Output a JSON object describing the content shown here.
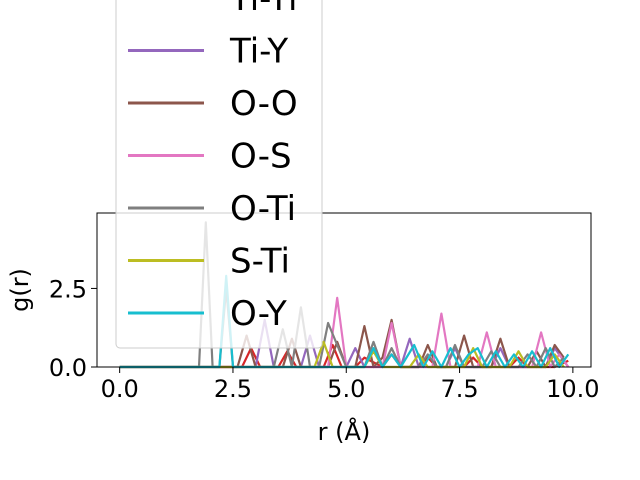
{
  "chart_data": {
    "type": "line",
    "xlabel": "r (Å)",
    "ylabel": "g(r)",
    "xlim": [
      -0.5,
      10.4
    ],
    "ylim": [
      0,
      4.9
    ],
    "xticks": [
      {
        "value": 0.0,
        "label": "0.0"
      },
      {
        "value": 2.5,
        "label": "2.5"
      },
      {
        "value": 5.0,
        "label": "5.0"
      },
      {
        "value": 7.5,
        "label": "7.5"
      },
      {
        "value": 10.0,
        "label": "10.0"
      }
    ],
    "yticks": [
      {
        "value": 0.0,
        "label": "0.0"
      },
      {
        "value": 2.5,
        "label": "2.5"
      }
    ],
    "grid": false,
    "legend_position": "upper-left",
    "series": [
      {
        "name": "Ti-Ti",
        "color": "#d62728",
        "legend": true,
        "x": [
          0.0,
          2.7,
          2.9,
          3.1,
          3.3,
          3.5,
          3.7,
          3.9,
          4.1,
          4.5,
          4.7,
          4.9,
          5.2,
          5.4,
          5.8,
          6.0,
          6.2,
          6.6,
          6.8,
          7.0,
          7.6,
          7.8,
          8.0,
          8.6,
          8.8,
          9.0,
          9.6,
          9.9
        ],
        "y": [
          0.0,
          0.0,
          0.6,
          0.0,
          0.0,
          0.0,
          0.5,
          0.0,
          0.0,
          0.0,
          0.7,
          0.0,
          0.0,
          0.3,
          0.0,
          0.4,
          0.0,
          0.0,
          0.3,
          0.0,
          0.0,
          0.3,
          0.0,
          0.0,
          0.3,
          0.0,
          0.0,
          0.2
        ]
      },
      {
        "name": "Ti-Y",
        "color": "#9467bd",
        "legend": true,
        "x": [
          0.0,
          3.0,
          3.2,
          3.4,
          4.0,
          4.2,
          4.4,
          5.0,
          5.2,
          5.4,
          6.2,
          6.4,
          6.6,
          7.2,
          7.4,
          7.6,
          8.2,
          8.4,
          8.6,
          9.4,
          9.6,
          9.9
        ],
        "y": [
          0.0,
          0.0,
          1.5,
          0.0,
          0.0,
          1.0,
          0.0,
          0.0,
          0.6,
          0.0,
          0.0,
          0.9,
          0.0,
          0.0,
          0.6,
          0.0,
          0.0,
          0.6,
          0.0,
          0.0,
          0.6,
          0.0
        ]
      },
      {
        "name": "O-O",
        "color": "#8c564b",
        "legend": true,
        "x": [
          0.0,
          2.6,
          2.8,
          3.0,
          3.6,
          3.8,
          4.0,
          4.6,
          4.8,
          5.0,
          5.2,
          5.4,
          5.6,
          5.8,
          6.0,
          6.2,
          6.6,
          6.8,
          7.0,
          7.4,
          7.6,
          7.8,
          8.2,
          8.4,
          8.6,
          9.0,
          9.2,
          9.4,
          9.6,
          9.8
        ],
        "y": [
          0.0,
          0.0,
          1.0,
          0.0,
          0.0,
          0.9,
          0.0,
          0.0,
          0.8,
          0.0,
          0.0,
          1.3,
          0.0,
          0.3,
          1.5,
          0.0,
          0.0,
          0.7,
          0.0,
          0.0,
          1.0,
          0.0,
          0.0,
          0.9,
          0.0,
          0.0,
          0.5,
          0.0,
          0.7,
          0.3
        ]
      },
      {
        "name": "O-S",
        "color": "#e377c2",
        "legend": true,
        "x": [
          0.0,
          4.6,
          4.8,
          5.0,
          5.8,
          6.0,
          6.2,
          6.9,
          7.1,
          7.3,
          7.9,
          8.1,
          8.3,
          9.1,
          9.3,
          9.5,
          9.7,
          9.9
        ],
        "y": [
          0.0,
          0.0,
          2.2,
          0.0,
          0.0,
          1.4,
          0.0,
          0.0,
          1.7,
          0.0,
          0.0,
          1.1,
          0.0,
          0.0,
          1.1,
          0.0,
          0.4,
          0.0
        ]
      },
      {
        "name": "O-Ti",
        "color": "#7f7f7f",
        "legend": true,
        "x": [
          0.0,
          1.6,
          1.75,
          1.9,
          2.05,
          2.2,
          2.35,
          2.5,
          3.4,
          3.6,
          3.8,
          4.0,
          4.2,
          4.4,
          4.6,
          5.0,
          5.2,
          5.4,
          5.6,
          5.8,
          6.0,
          6.2,
          6.6,
          6.8,
          7.0,
          7.2,
          7.4,
          7.6,
          8.0,
          8.2,
          8.4,
          8.8,
          9.0,
          9.2,
          9.4,
          9.6,
          9.8
        ],
        "y": [
          0.0,
          0.0,
          0.0,
          4.6,
          0.0,
          0.0,
          2.5,
          0.0,
          0.0,
          1.2,
          0.0,
          1.9,
          0.0,
          0.0,
          1.4,
          0.0,
          0.0,
          0.0,
          0.8,
          0.0,
          0.6,
          0.0,
          0.0,
          0.4,
          0.0,
          0.0,
          0.7,
          0.0,
          0.0,
          0.5,
          0.0,
          0.0,
          0.4,
          0.0,
          0.6,
          0.0,
          0.3
        ]
      },
      {
        "name": "S-Ti",
        "color": "#bcbd22",
        "legend": true,
        "x": [
          0.0,
          2.5,
          2.7,
          2.9,
          4.3,
          4.5,
          4.7,
          5.4,
          5.6,
          5.8,
          6.4,
          6.6,
          6.8,
          7.6,
          7.8,
          8.0,
          8.6,
          8.8,
          9.0,
          9.4,
          9.6,
          9.8
        ],
        "y": [
          0.0,
          0.0,
          0.0,
          0.0,
          0.0,
          0.8,
          0.0,
          0.0,
          0.5,
          0.0,
          0.0,
          0.4,
          0.0,
          0.0,
          0.6,
          0.0,
          0.0,
          0.5,
          0.0,
          0.0,
          0.4,
          0.0
        ]
      },
      {
        "name": "O-Y",
        "color": "#17becf",
        "legend": true,
        "x": [
          0.0,
          2.2,
          2.35,
          2.5,
          2.65,
          2.8,
          5.4,
          5.6,
          5.8,
          6.0,
          6.2,
          6.5,
          6.7,
          6.9,
          7.1,
          7.3,
          7.5,
          7.7,
          7.9,
          8.1,
          8.3,
          8.5,
          8.7,
          8.9,
          9.1,
          9.3,
          9.5,
          9.7,
          9.9
        ],
        "y": [
          0.0,
          0.0,
          2.9,
          0.0,
          0.0,
          0.0,
          0.0,
          0.6,
          0.0,
          0.4,
          0.0,
          0.7,
          0.0,
          0.5,
          0.0,
          0.6,
          0.0,
          0.4,
          0.6,
          0.0,
          0.5,
          0.0,
          0.4,
          0.0,
          0.5,
          0.0,
          0.6,
          0.0,
          0.4
        ]
      }
    ]
  }
}
